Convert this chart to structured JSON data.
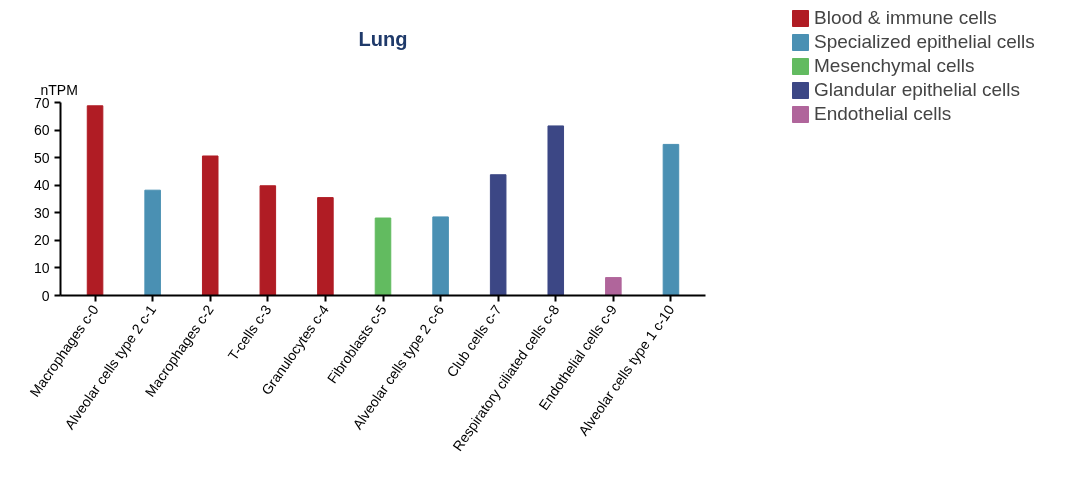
{
  "chart_data": {
    "type": "bar",
    "title": "Lung",
    "ylabel": "nTPM",
    "categories": [
      "Macrophages c-0",
      "Alveolar cells type 2 c-1",
      "Macrophages c-2",
      "T-cells c-3",
      "Granulocytes c-4",
      "Fibroblasts c-5",
      "Alveolar cells type 2 c-6",
      "Club cells c-7",
      "Respiratory ciliated cells c-8",
      "Endothelial cells c-9",
      "Alveolar cells type 1 c-10"
    ],
    "series": [
      {
        "name": "Blood & immune cells",
        "color": "#b01c24",
        "values": [
          68.8,
          null,
          50.6,
          39.8,
          35.5,
          null,
          null,
          null,
          null,
          null,
          null
        ]
      },
      {
        "name": "Specialized epithelial cells",
        "color": "#4a90b3",
        "values": [
          null,
          38.2,
          null,
          null,
          null,
          null,
          28.5,
          null,
          null,
          null,
          54.8
        ]
      },
      {
        "name": "Mesenchymal cells",
        "color": "#62bb60",
        "values": [
          null,
          null,
          null,
          null,
          null,
          28.1,
          null,
          null,
          null,
          null,
          null
        ]
      },
      {
        "name": "Glandular epithelial cells",
        "color": "#3c4785",
        "values": [
          null,
          null,
          null,
          null,
          null,
          null,
          null,
          43.8,
          61.5,
          null,
          null
        ]
      },
      {
        "name": "Endothelial cells",
        "color": "#b0659b",
        "values": [
          null,
          null,
          null,
          null,
          null,
          null,
          null,
          null,
          null,
          6.5,
          null
        ]
      }
    ],
    "ylim": [
      0,
      70
    ],
    "yticks": [
      0,
      10,
      20,
      30,
      40,
      50,
      60,
      70
    ],
    "grid": false,
    "legend": "top right"
  }
}
